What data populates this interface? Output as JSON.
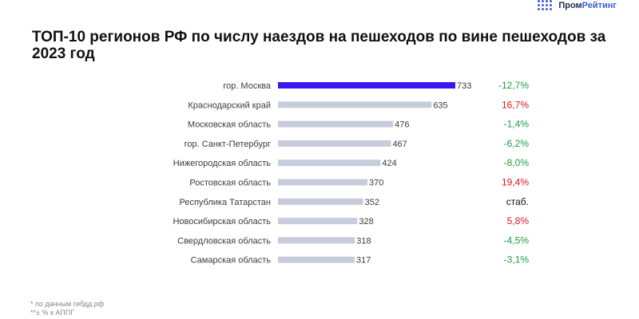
{
  "brand": {
    "part1": "Пром",
    "part2": "Рейтинг"
  },
  "title": "ТОП-10  регионов РФ по числу наездов на пешеходов по вине пешеходов за 2023 год",
  "colors": {
    "highlight": "#3a17ee",
    "bar": "#c7ccdb",
    "negative": "#1f9d42",
    "positive": "#e0151d",
    "neutral": "#111111"
  },
  "chart_data": {
    "type": "bar",
    "orientation": "horizontal",
    "categories": [
      "гор. Москва",
      "Краснодарский край",
      "Московская область",
      "гор. Санкт-Петербург",
      "Нижегородская область",
      "Ростовская область",
      "Республика Татарстан",
      "Новосибирская область",
      "Свердловская область",
      "Самарская область"
    ],
    "values": [
      733,
      635,
      476,
      467,
      424,
      370,
      352,
      328,
      318,
      317
    ],
    "changes": [
      "-12,7%",
      "16,7%",
      "-1,4%",
      "-6,2%",
      "-8,0%",
      "19,4%",
      "стаб.",
      "5,8%",
      "-4,5%",
      "-3,1%"
    ],
    "change_direction": [
      "down",
      "up",
      "down",
      "down",
      "down",
      "up",
      "flat",
      "up",
      "down",
      "down"
    ],
    "highlight_index": 0
  },
  "footnotes": [
    "* по данным гибдд.рф",
    "**± % к АППГ"
  ]
}
